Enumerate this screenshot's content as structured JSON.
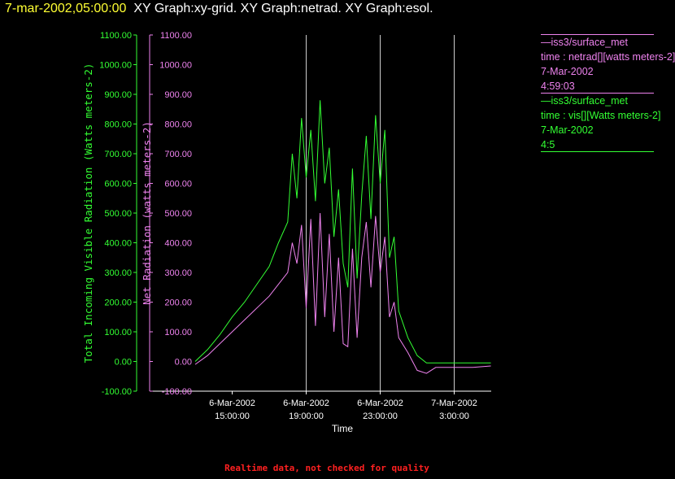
{
  "header": {
    "timestamp": "7-mar-2002,05:00:00",
    "graphs": "XY Graph:xy-grid.  XY Graph:netrad.  XY Graph:esol."
  },
  "legend": [
    {
      "source": "—iss3/surface_met",
      "variable": "time : netrad[][watts meters-2]",
      "date": "7-Mar-2002",
      "time": "4:59:03",
      "color": "#ee82ee"
    },
    {
      "source": "—iss3/surface_met",
      "variable": "time : vis[][Watts meters-2]",
      "date": "7-Mar-2002",
      "time": "4:5",
      "color": "#33ff33"
    }
  ],
  "footer": "Realtime data, not checked for quality",
  "chart_data": {
    "type": "line",
    "xlabel": "Time",
    "x_ticks": [
      {
        "date": "6-Mar-2002",
        "time": "15:00:00"
      },
      {
        "date": "6-Mar-2002",
        "time": "19:00:00"
      },
      {
        "date": "6-Mar-2002",
        "time": "23:00:00"
      },
      {
        "date": "7-Mar-2002",
        "time": "3:00:00"
      }
    ],
    "xlim": [
      "2002-03-06 13:00",
      "2002-03-07 05:00"
    ],
    "vertical_grid_at": [
      "2002-03-06 19:00",
      "2002-03-06 23:00",
      "2002-03-07 03:00"
    ],
    "y_left": {
      "label": "Total Incoming Visible Radiation (Watts meters-2)",
      "range": [
        -100,
        1100
      ],
      "color": "#33ff33"
    },
    "y_right": {
      "label": "Net Radiation (watts meters-2)",
      "range": [
        -100,
        1100
      ],
      "color": "#ee82ee"
    },
    "y_ticks": [
      "-100.00",
      "0.00",
      "100.00",
      "200.00",
      "300.00",
      "400.00",
      "500.00",
      "600.00",
      "700.00",
      "800.00",
      "900.00",
      "1000.00",
      "1100.00"
    ],
    "series": [
      {
        "name": "vis",
        "color": "#33ff33",
        "x": [
          "2002-03-06 13:00",
          "2002-03-06 13:40",
          "2002-03-06 14:20",
          "2002-03-06 15:00",
          "2002-03-06 15:40",
          "2002-03-06 16:20",
          "2002-03-06 17:00",
          "2002-03-06 17:30",
          "2002-03-06 18:00",
          "2002-03-06 18:15",
          "2002-03-06 18:30",
          "2002-03-06 18:45",
          "2002-03-06 19:00",
          "2002-03-06 19:15",
          "2002-03-06 19:30",
          "2002-03-06 19:45",
          "2002-03-06 20:00",
          "2002-03-06 20:15",
          "2002-03-06 20:30",
          "2002-03-06 20:45",
          "2002-03-06 21:00",
          "2002-03-06 21:15",
          "2002-03-06 21:30",
          "2002-03-06 21:45",
          "2002-03-06 22:00",
          "2002-03-06 22:15",
          "2002-03-06 22:30",
          "2002-03-06 22:45",
          "2002-03-06 23:00",
          "2002-03-06 23:15",
          "2002-03-06 23:30",
          "2002-03-06 23:45",
          "2002-03-07 00:00",
          "2002-03-07 00:30",
          "2002-03-07 01:00",
          "2002-03-07 01:30",
          "2002-03-07 02:00",
          "2002-03-07 03:00",
          "2002-03-07 04:00",
          "2002-03-07 04:59"
        ],
        "y": [
          0,
          40,
          90,
          150,
          200,
          260,
          320,
          400,
          470,
          700,
          550,
          820,
          620,
          780,
          540,
          880,
          600,
          720,
          420,
          580,
          330,
          250,
          650,
          280,
          560,
          760,
          480,
          830,
          600,
          780,
          350,
          420,
          170,
          80,
          20,
          -5,
          -5,
          -5,
          -5,
          -5
        ]
      },
      {
        "name": "netrad",
        "color": "#ee82ee",
        "x": [
          "2002-03-06 13:00",
          "2002-03-06 13:40",
          "2002-03-06 14:20",
          "2002-03-06 15:00",
          "2002-03-06 15:40",
          "2002-03-06 16:20",
          "2002-03-06 17:00",
          "2002-03-06 17:30",
          "2002-03-06 18:00",
          "2002-03-06 18:15",
          "2002-03-06 18:30",
          "2002-03-06 18:45",
          "2002-03-06 19:00",
          "2002-03-06 19:15",
          "2002-03-06 19:30",
          "2002-03-06 19:45",
          "2002-03-06 20:00",
          "2002-03-06 20:15",
          "2002-03-06 20:30",
          "2002-03-06 20:45",
          "2002-03-06 21:00",
          "2002-03-06 21:15",
          "2002-03-06 21:30",
          "2002-03-06 21:45",
          "2002-03-06 22:00",
          "2002-03-06 22:15",
          "2002-03-06 22:30",
          "2002-03-06 22:45",
          "2002-03-06 23:00",
          "2002-03-06 23:15",
          "2002-03-06 23:30",
          "2002-03-06 23:45",
          "2002-03-07 00:00",
          "2002-03-07 00:30",
          "2002-03-07 01:00",
          "2002-03-07 01:30",
          "2002-03-07 02:00",
          "2002-03-07 03:00",
          "2002-03-07 04:00",
          "2002-03-07 04:59"
        ],
        "y": [
          -10,
          20,
          60,
          100,
          140,
          180,
          220,
          260,
          300,
          400,
          330,
          460,
          180,
          480,
          120,
          500,
          150,
          430,
          100,
          350,
          60,
          50,
          380,
          80,
          350,
          470,
          250,
          490,
          300,
          420,
          150,
          200,
          80,
          30,
          -30,
          -40,
          -20,
          -20,
          -20,
          -15
        ]
      }
    ]
  }
}
